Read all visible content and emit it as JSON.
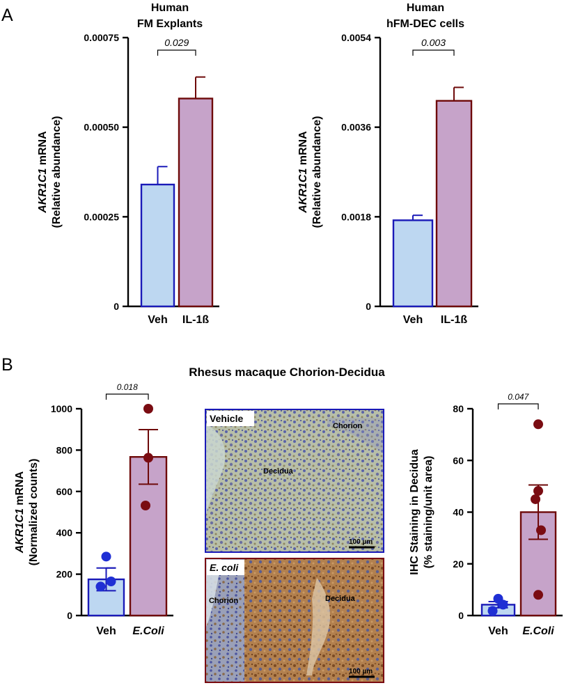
{
  "panel_labels": {
    "a": "A",
    "b": "B"
  },
  "panel_b_title": "Rhesus macaque Chorion-Decidua",
  "colors": {
    "veh_fill": "#bdd7f1",
    "veh_edge": "#1a1ab8",
    "trt_fill": "#c6a3c9",
    "trt_edge": "#6e0a0a",
    "veh_dot": "#1f2fd4",
    "trt_dot": "#7a0c12"
  },
  "images": {
    "vehicle": {
      "label": "Vehicle",
      "chorion": "Chorion",
      "decidua": "Decidua",
      "scale": "100 µm"
    },
    "ecoli": {
      "label": "E. coli",
      "chorion": "Chorion",
      "decidua": "Decidua",
      "scale": "100 µm"
    }
  },
  "chart_data": [
    {
      "id": "a1",
      "type": "bar",
      "title_lines": [
        "Human",
        "FM Explants"
      ],
      "ylabel_italic": "AKR1C1",
      "ylabel_rest": " mRNA",
      "ylabel_line2": "(Relative abundance)",
      "categories": [
        "Veh",
        "IL-1ß"
      ],
      "values": [
        0.00034,
        0.00058
      ],
      "errors": [
        5e-05,
        6e-05
      ],
      "ylim": [
        0,
        0.00075
      ],
      "yticks": [
        0,
        0.00025,
        0.0005,
        0.00075
      ],
      "ytick_labels": [
        "0",
        "0.00025",
        "0.00050",
        "0.00075"
      ],
      "pvalue": "0.029"
    },
    {
      "id": "a2",
      "type": "bar",
      "title_lines": [
        "Human",
        "hFM-DEC cells"
      ],
      "ylabel_italic": "AKR1C1",
      "ylabel_rest": " mRNA",
      "ylabel_line2": "(Relative abundance)",
      "categories": [
        "Veh",
        "IL-1ß"
      ],
      "values": [
        0.00173,
        0.00413
      ],
      "errors": [
        0.0001,
        0.00027
      ],
      "ylim": [
        0,
        0.0054
      ],
      "yticks": [
        0,
        0.0018,
        0.0036,
        0.0054
      ],
      "ytick_labels": [
        "0",
        "0.0018",
        "0.0036",
        "0.0054"
      ],
      "pvalue": "0.003"
    },
    {
      "id": "b1",
      "type": "bar",
      "ylabel_italic": "AKR1C1",
      "ylabel_rest": " mRNA",
      "ylabel_line2": "(Normalized counts)",
      "categories": [
        "Veh",
        "E.Coli"
      ],
      "category_italic": [
        false,
        true
      ],
      "values": [
        175,
        767
      ],
      "errors": [
        55,
        132
      ],
      "points": [
        [
          285,
          165,
          140
        ],
        [
          1000,
          763,
          532
        ]
      ],
      "ylim": [
        0,
        1000
      ],
      "yticks": [
        0,
        200,
        400,
        600,
        800,
        1000
      ],
      "ytick_labels": [
        "0",
        "200",
        "400",
        "600",
        "800",
        "1000"
      ],
      "pvalue": "0.018"
    },
    {
      "id": "b2",
      "type": "bar",
      "ylabel_italic": "",
      "ylabel_rest": "IHC Staining in Decidua",
      "ylabel_line2": "(% staining/unit area)",
      "categories": [
        "Veh",
        "E.Coli"
      ],
      "category_italic": [
        false,
        true
      ],
      "values": [
        4.2,
        40
      ],
      "errors": [
        1.2,
        10.5
      ],
      "points": [
        [
          6.5,
          4.2,
          1.8
        ],
        [
          74,
          48.2,
          45,
          33,
          8
        ]
      ],
      "ylim": [
        0,
        80
      ],
      "yticks": [
        0,
        20,
        40,
        60,
        80
      ],
      "ytick_labels": [
        "0",
        "20",
        "40",
        "60",
        "80"
      ],
      "pvalue": "0.047"
    }
  ]
}
